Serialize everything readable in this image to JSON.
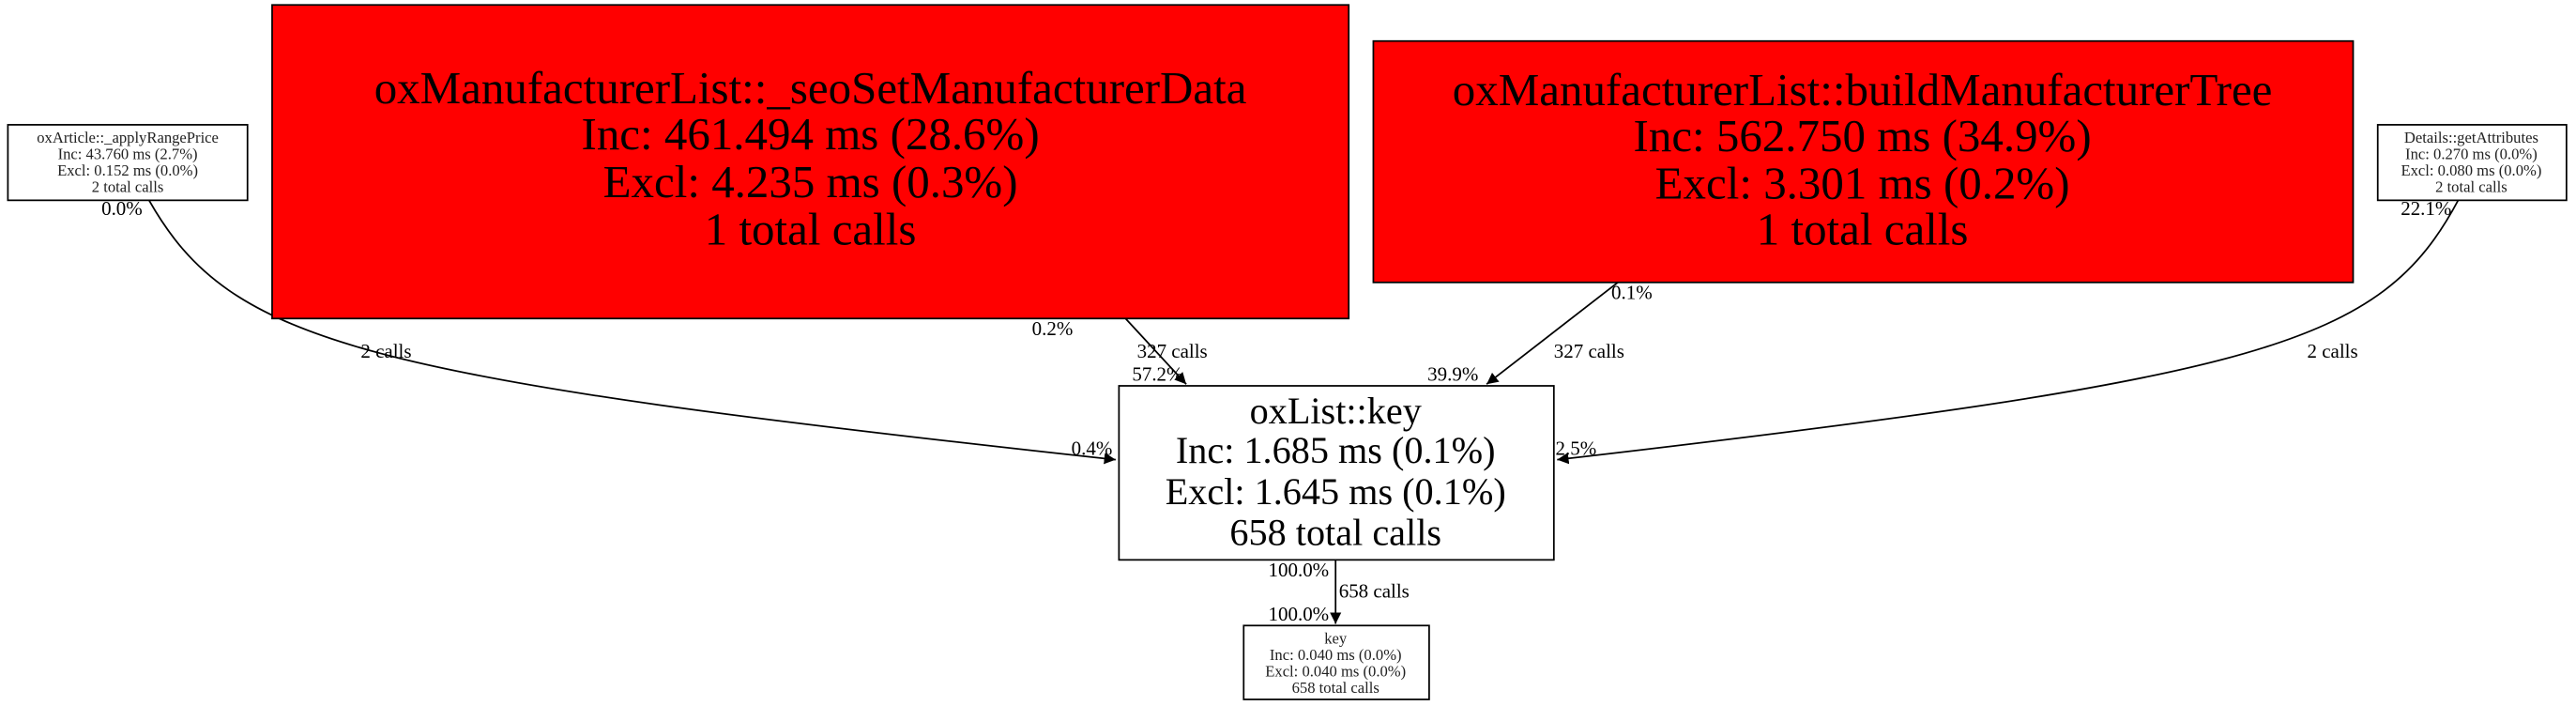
{
  "nodes": [
    {
      "name": "oxArticle::_applyRangePrice",
      "inc": "Inc: 43.760 ms (2.7%)",
      "excl": "Excl: 0.152 ms (0.0%)",
      "calls": "2 total calls"
    },
    {
      "name": "oxManufacturerList::_seoSetManufacturerData",
      "inc": "Inc: 461.494 ms (28.6%)",
      "excl": "Excl: 4.235 ms (0.3%)",
      "calls": "1 total calls"
    },
    {
      "name": "oxManufacturerList::buildManufacturerTree",
      "inc": "Inc: 562.750 ms (34.9%)",
      "excl": "Excl: 3.301 ms (0.2%)",
      "calls": "1 total calls"
    },
    {
      "name": "Details::getAttributes",
      "inc": "Inc: 0.270 ms (0.0%)",
      "excl": "Excl: 0.080 ms (0.0%)",
      "calls": "2 total calls"
    },
    {
      "name": "oxList::key",
      "inc": "Inc: 1.685 ms (0.1%)",
      "excl": "Excl: 1.645 ms (0.1%)",
      "calls": "658 total calls"
    },
    {
      "name": "key",
      "inc": "Inc: 0.040 ms (0.0%)",
      "excl": "Excl: 0.040 ms (0.0%)",
      "calls": "658 total calls"
    }
  ],
  "edges": [
    {
      "calls": "2 calls",
      "src_pct": "0.0%",
      "dst_pct": "0.4%"
    },
    {
      "calls": "327 calls",
      "src_pct": "0.2%",
      "dst_pct": "57.2%"
    },
    {
      "calls": "327 calls",
      "src_pct": "0.1%",
      "dst_pct": "39.9%"
    },
    {
      "calls": "2 calls",
      "src_pct": "22.1%",
      "dst_pct": "2.5%"
    },
    {
      "calls": "658 calls",
      "src_pct": "100.0%",
      "dst_pct": "100.0%"
    }
  ]
}
